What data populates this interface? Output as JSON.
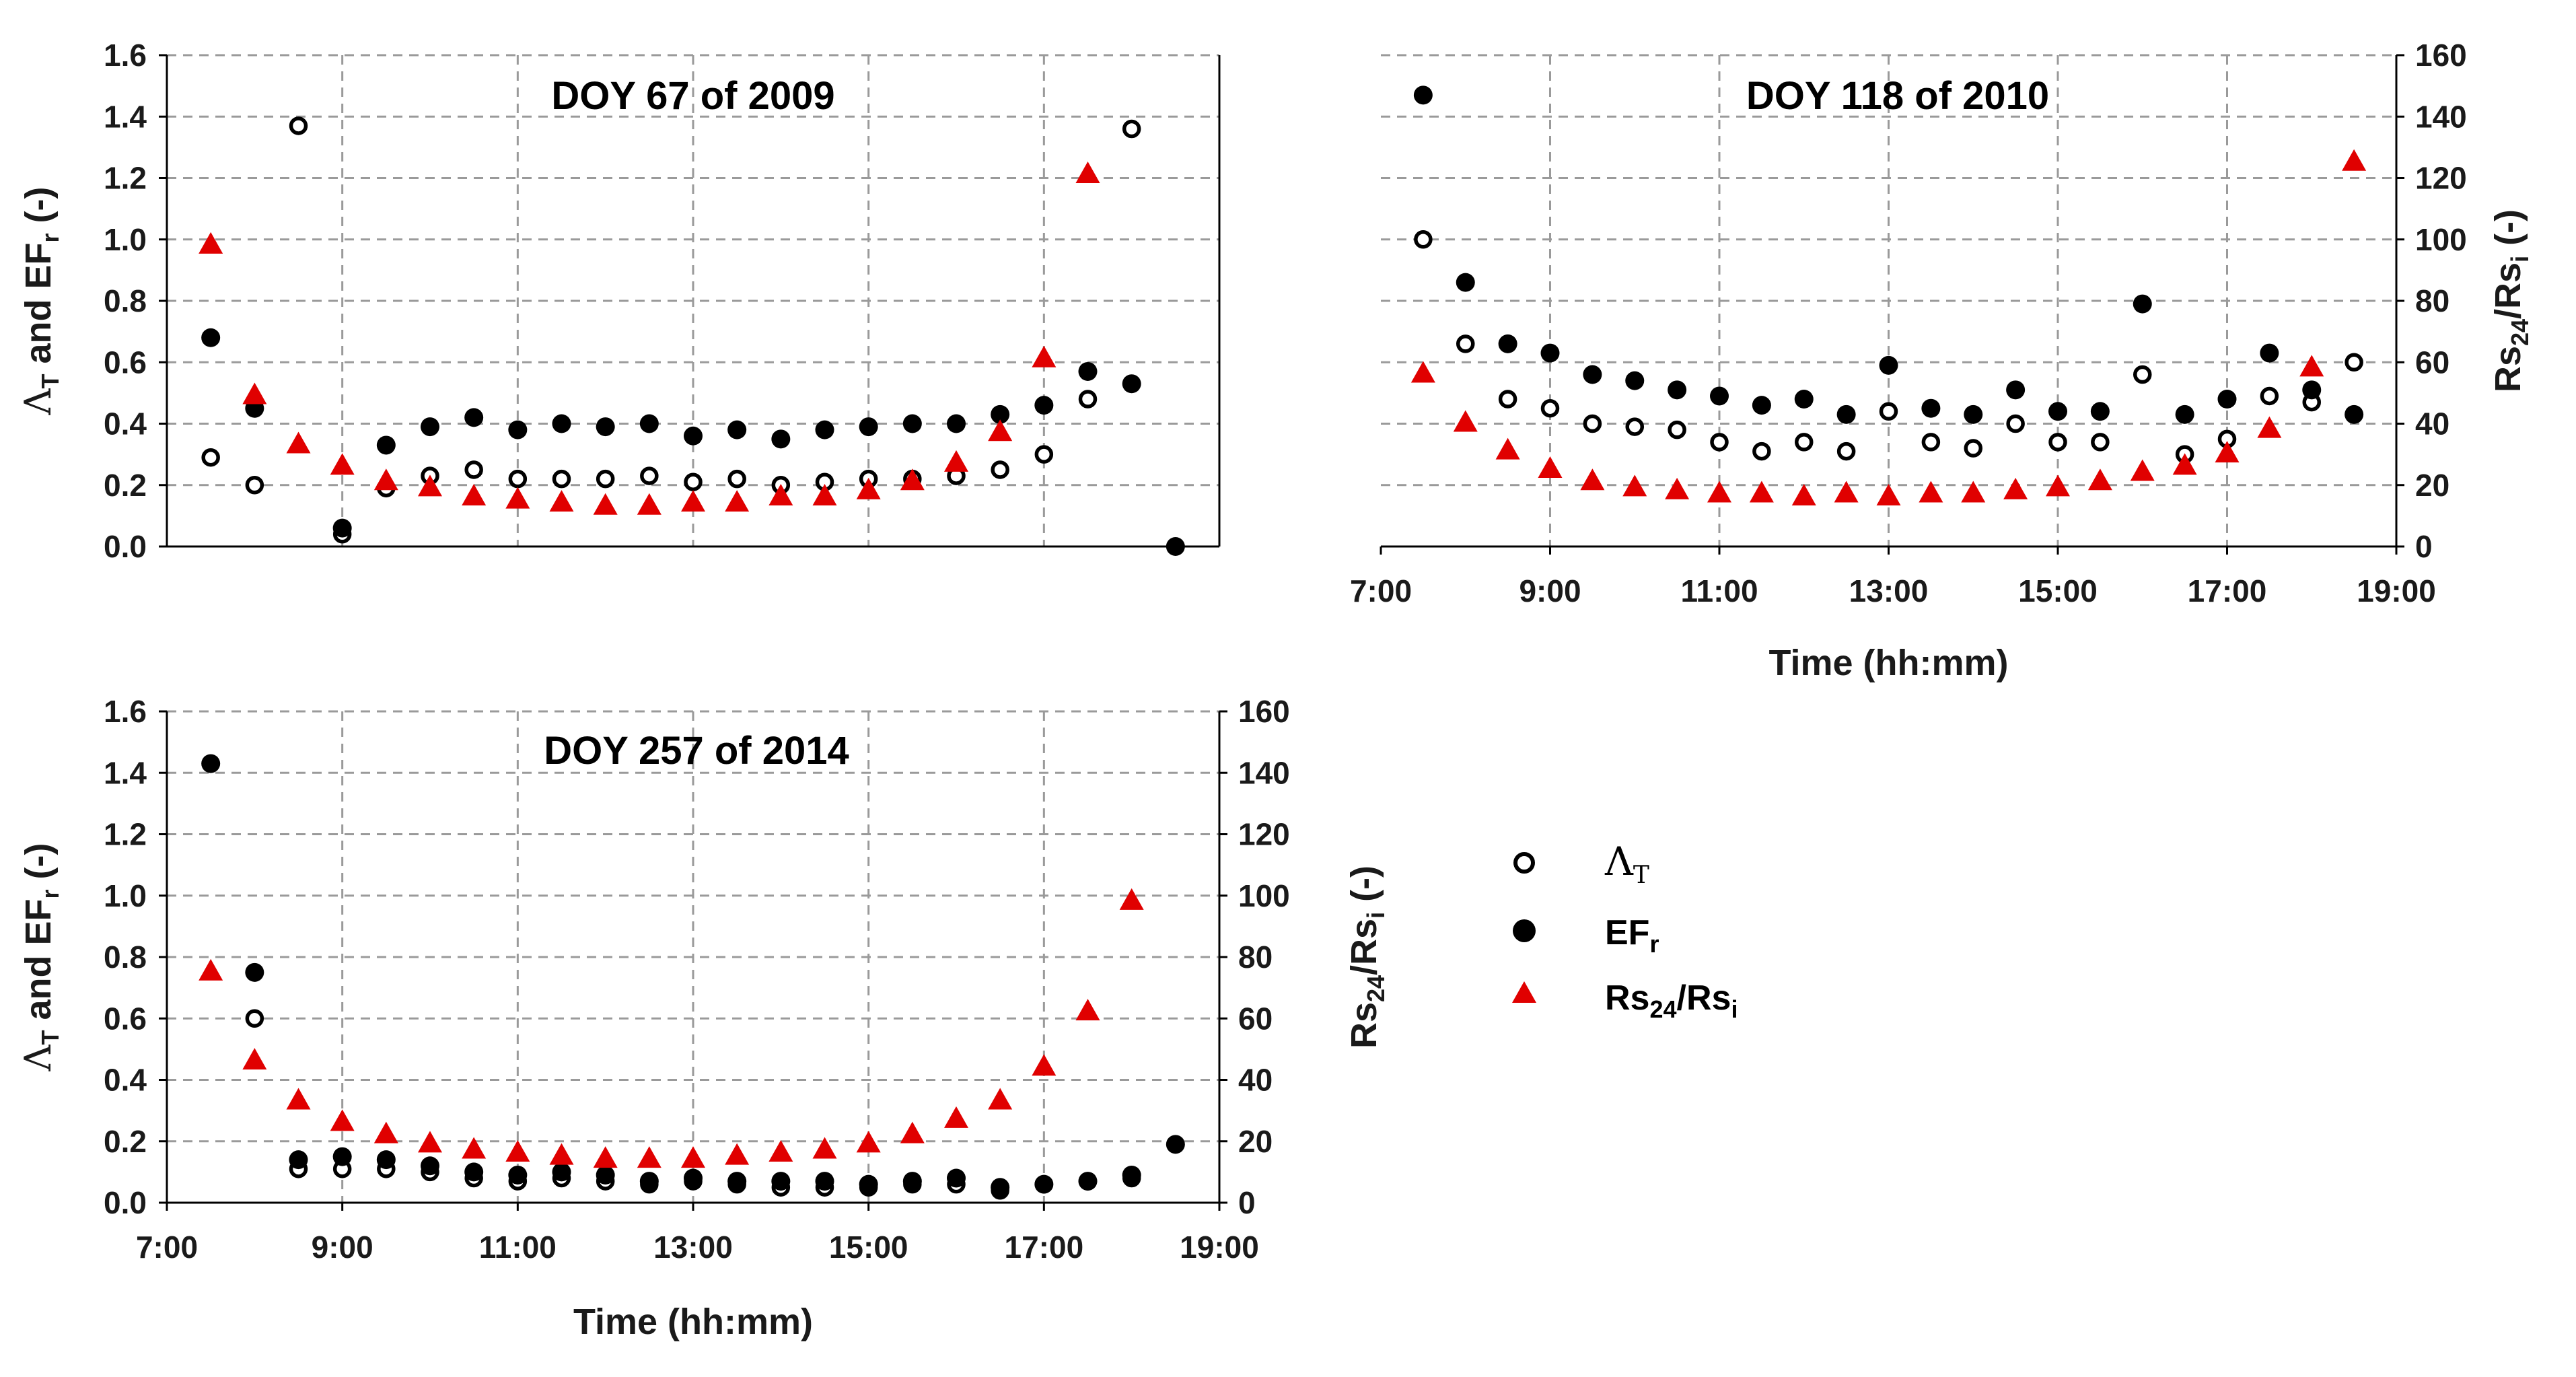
{
  "colors": {
    "triangle": "#E00000",
    "dot": "#000000",
    "grid": "#9a9a9a",
    "axis": "#000000"
  },
  "legend": {
    "lambda": {
      "main": "Λ",
      "sub": "T"
    },
    "efr": {
      "main": "EF",
      "sub": "r"
    },
    "rs": {
      "a": "Rs",
      "sub1": "24",
      "b": "/Rs",
      "sub2": "i"
    }
  },
  "chart_data": [
    {
      "type": "scatter",
      "panel": "top-left",
      "title": "DOY 67 of 2009",
      "ylabel": {
        "a": "Λ",
        "sub1": "T",
        "b": " and EF",
        "sub2": "r",
        "c": " (-)"
      },
      "xlim": [
        7.0,
        19.0
      ],
      "ylim": [
        0,
        1.6
      ],
      "y2lim": [
        0,
        160
      ],
      "yticks": [
        "0.0",
        "0.2",
        "0.4",
        "0.6",
        "0.8",
        "1.0",
        "1.2",
        "1.4",
        "1.6"
      ],
      "series": [
        {
          "name": "ΛT",
          "marker": "open-circle",
          "x": [
            7.5,
            8.0,
            8.5,
            9.0,
            9.5,
            10.0,
            10.5,
            11.0,
            11.5,
            12.0,
            12.5,
            13.0,
            13.5,
            14.0,
            14.5,
            15.0,
            15.5,
            16.0,
            16.5,
            17.0,
            17.5,
            18.0
          ],
          "y": [
            0.29,
            0.2,
            1.37,
            0.04,
            0.19,
            0.23,
            0.25,
            0.22,
            0.22,
            0.22,
            0.23,
            0.21,
            0.22,
            0.2,
            0.21,
            0.22,
            0.22,
            0.23,
            0.25,
            0.3,
            0.48,
            1.36
          ]
        },
        {
          "name": "EFr",
          "marker": "filled-circle",
          "x": [
            7.5,
            8.0,
            9.0,
            9.5,
            10.0,
            10.5,
            11.0,
            11.5,
            12.0,
            12.5,
            13.0,
            13.5,
            14.0,
            14.5,
            15.0,
            15.5,
            16.0,
            16.5,
            17.0,
            17.5,
            18.0,
            18.5
          ],
          "y": [
            0.68,
            0.45,
            0.06,
            0.33,
            0.39,
            0.42,
            0.38,
            0.4,
            0.39,
            0.4,
            0.36,
            0.38,
            0.35,
            0.38,
            0.39,
            0.4,
            0.4,
            0.43,
            0.46,
            0.57,
            0.53,
            0.0
          ]
        },
        {
          "name": "Rs24/Rsi",
          "marker": "triangle",
          "axis": "y2",
          "x": [
            7.5,
            8.0,
            8.5,
            9.0,
            9.5,
            10.0,
            10.5,
            11.0,
            11.5,
            12.0,
            12.5,
            13.0,
            13.5,
            14.0,
            14.5,
            15.0,
            15.5,
            16.0,
            16.5,
            17.0,
            17.5
          ],
          "y": [
            98,
            49,
            33,
            26,
            21,
            19,
            16,
            15,
            14,
            13,
            13,
            14,
            14,
            16,
            16,
            18,
            21,
            27,
            37,
            61,
            121
          ]
        }
      ]
    },
    {
      "type": "scatter",
      "panel": "top-right",
      "title": "DOY 118 of 2010",
      "xlabel": "Time (hh:mm)",
      "y2label": {
        "a": "Rs",
        "sub1": "24",
        "b": "/Rs",
        "sub2": "i",
        "c": " (-)"
      },
      "xlim": [
        7.0,
        19.0
      ],
      "ylim": [
        0,
        1.6
      ],
      "y2lim": [
        0,
        160
      ],
      "xticks": [
        "7:00",
        "9:00",
        "11:00",
        "13:00",
        "15:00",
        "17:00",
        "19:00"
      ],
      "y2ticks": [
        "0",
        "20",
        "40",
        "60",
        "80",
        "100",
        "120",
        "140",
        "160"
      ],
      "series": [
        {
          "name": "ΛT",
          "marker": "open-circle",
          "x": [
            7.5,
            8.0,
            8.5,
            9.0,
            9.5,
            10.0,
            10.5,
            11.0,
            11.5,
            12.0,
            12.5,
            13.0,
            13.5,
            14.0,
            14.5,
            15.0,
            15.5,
            16.0,
            16.5,
            17.0,
            17.5,
            18.0,
            18.5
          ],
          "y": [
            1.0,
            0.66,
            0.48,
            0.45,
            0.4,
            0.39,
            0.38,
            0.34,
            0.31,
            0.34,
            0.31,
            0.44,
            0.34,
            0.32,
            0.4,
            0.34,
            0.34,
            0.56,
            0.3,
            0.35,
            0.49,
            0.47,
            0.6
          ]
        },
        {
          "name": "EFr",
          "marker": "filled-circle",
          "x": [
            7.5,
            8.0,
            8.5,
            9.0,
            9.5,
            10.0,
            10.5,
            11.0,
            11.5,
            12.0,
            12.5,
            13.0,
            13.5,
            14.0,
            14.5,
            15.0,
            15.5,
            16.0,
            16.5,
            17.0,
            17.5,
            18.0,
            18.5
          ],
          "y": [
            1.47,
            0.86,
            0.66,
            0.63,
            0.56,
            0.54,
            0.51,
            0.49,
            0.46,
            0.48,
            0.43,
            0.59,
            0.45,
            0.43,
            0.51,
            0.44,
            0.44,
            0.79,
            0.43,
            0.48,
            0.63,
            0.51,
            0.43
          ]
        },
        {
          "name": "Rs24/Rsi",
          "marker": "triangle",
          "axis": "y2",
          "x": [
            7.5,
            8.0,
            8.5,
            9.0,
            9.5,
            10.0,
            10.5,
            11.0,
            11.5,
            12.0,
            12.5,
            13.0,
            13.5,
            14.0,
            14.5,
            15.0,
            15.5,
            16.0,
            16.5,
            17.0,
            17.5,
            18.0,
            18.5
          ],
          "y": [
            56,
            40,
            31,
            25,
            21,
            19,
            18,
            17,
            17,
            16,
            17,
            16,
            17,
            17,
            18,
            19,
            21,
            24,
            26,
            30,
            38,
            58,
            125
          ]
        }
      ]
    },
    {
      "type": "scatter",
      "panel": "bottom-left",
      "title": "DOY 257 of 2014",
      "xlabel": "Time (hh:mm)",
      "ylabel": {
        "a": "Λ",
        "sub1": "T",
        "b": " and EF",
        "sub2": "r",
        "c": " (-)"
      },
      "y2label": {
        "a": "Rs",
        "sub1": "24",
        "b": "/Rs",
        "sub2": "i",
        "c": " (-)"
      },
      "xlim": [
        7.0,
        19.0
      ],
      "ylim": [
        0,
        1.6
      ],
      "y2lim": [
        0,
        160
      ],
      "xticks": [
        "7:00",
        "9:00",
        "11:00",
        "13:00",
        "15:00",
        "17:00",
        "19:00"
      ],
      "yticks": [
        "0.0",
        "0.2",
        "0.4",
        "0.6",
        "0.8",
        "1.0",
        "1.2",
        "1.4",
        "1.6"
      ],
      "y2ticks": [
        "0",
        "20",
        "40",
        "60",
        "80",
        "100",
        "120",
        "140",
        "160"
      ],
      "series": [
        {
          "name": "ΛT",
          "marker": "open-circle",
          "x": [
            8.0,
            8.5,
            9.0,
            9.5,
            10.0,
            10.5,
            11.0,
            11.5,
            12.0,
            12.5,
            13.0,
            13.5,
            14.0,
            14.5,
            15.0,
            15.5,
            16.0,
            16.5,
            17.0,
            17.5,
            18.0
          ],
          "y": [
            0.6,
            0.11,
            0.11,
            0.11,
            0.1,
            0.08,
            0.07,
            0.08,
            0.07,
            0.06,
            0.07,
            0.06,
            0.05,
            0.05,
            0.05,
            0.06,
            0.06,
            0.04,
            0.06,
            0.07,
            0.08
          ]
        },
        {
          "name": "EFr",
          "marker": "filled-circle",
          "x": [
            7.5,
            8.0,
            8.5,
            9.0,
            9.5,
            10.0,
            10.5,
            11.0,
            11.5,
            12.0,
            12.5,
            13.0,
            13.5,
            14.0,
            14.5,
            15.0,
            15.5,
            16.0,
            16.5,
            17.0,
            17.5,
            18.0,
            18.5
          ],
          "y": [
            1.43,
            0.75,
            0.14,
            0.15,
            0.14,
            0.12,
            0.1,
            0.09,
            0.1,
            0.09,
            0.07,
            0.08,
            0.07,
            0.07,
            0.07,
            0.06,
            0.07,
            0.08,
            0.05,
            0.06,
            0.07,
            0.09,
            0.19
          ]
        },
        {
          "name": "Rs24/Rsi",
          "marker": "triangle",
          "axis": "y2",
          "x": [
            7.5,
            8.0,
            8.5,
            9.0,
            9.5,
            10.0,
            10.5,
            11.0,
            11.5,
            12.0,
            12.5,
            13.0,
            13.5,
            14.0,
            14.5,
            15.0,
            15.5,
            16.0,
            16.5,
            17.0,
            17.5,
            18.0
          ],
          "y": [
            75,
            46,
            33,
            26,
            22,
            19,
            17,
            16,
            15,
            14,
            14,
            14,
            15,
            16,
            17,
            19,
            22,
            27,
            33,
            44,
            62,
            98
          ]
        }
      ]
    }
  ]
}
